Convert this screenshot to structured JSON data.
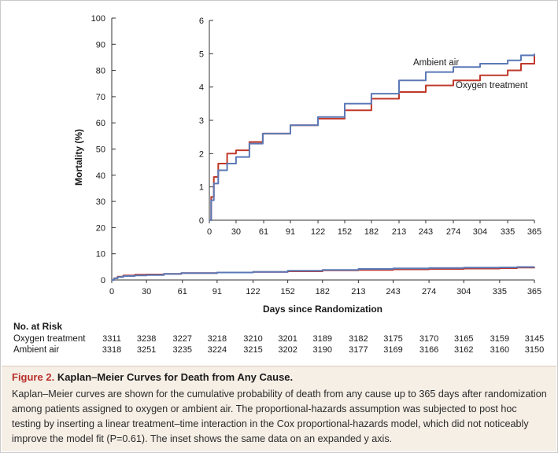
{
  "chart_data": [
    {
      "type": "line",
      "ylabel": "Mortality (%)",
      "xlabel": "Days since Randomization",
      "x_ticks": [
        0,
        30,
        61,
        91,
        122,
        152,
        182,
        213,
        243,
        274,
        304,
        335,
        365
      ],
      "xlim": [
        0,
        365
      ],
      "y_ticks": [
        0,
        10,
        20,
        30,
        40,
        50,
        60,
        70,
        80,
        90,
        100
      ],
      "ylim": [
        0,
        100
      ],
      "grid": false,
      "series": [
        {
          "name": "Oxygen treatment",
          "color": "#c0392b",
          "x": [
            0,
            2,
            5,
            10,
            20,
            30,
            45,
            60,
            91,
            122,
            152,
            182,
            213,
            243,
            274,
            304,
            335,
            350,
            365
          ],
          "y": [
            0,
            0.7,
            1.3,
            1.7,
            2.0,
            2.1,
            2.35,
            2.6,
            2.85,
            3.05,
            3.3,
            3.65,
            3.85,
            4.05,
            4.2,
            4.35,
            4.5,
            4.7,
            4.95
          ]
        },
        {
          "name": "Ambient air",
          "color": "#5b79b6",
          "x": [
            0,
            2,
            5,
            10,
            20,
            30,
            45,
            60,
            91,
            122,
            152,
            182,
            213,
            243,
            274,
            304,
            335,
            350,
            365
          ],
          "y": [
            0,
            0.6,
            1.1,
            1.5,
            1.7,
            1.9,
            2.3,
            2.6,
            2.85,
            3.1,
            3.5,
            3.8,
            4.2,
            4.45,
            4.6,
            4.7,
            4.8,
            4.95,
            5.0
          ]
        }
      ]
    },
    {
      "type": "line",
      "inset": true,
      "x_ticks": [
        0,
        30,
        61,
        91,
        122,
        152,
        182,
        213,
        243,
        274,
        304,
        335,
        365
      ],
      "xlim": [
        0,
        365
      ],
      "y_ticks": [
        0,
        1,
        2,
        3,
        4,
        5,
        6
      ],
      "ylim": [
        0,
        6
      ],
      "grid": false,
      "series": [
        {
          "name": "Oxygen treatment",
          "color": "#c0392b",
          "x": [
            0,
            2,
            5,
            10,
            20,
            30,
            45,
            60,
            91,
            122,
            152,
            182,
            213,
            243,
            274,
            304,
            335,
            350,
            365
          ],
          "y": [
            0,
            0.7,
            1.3,
            1.7,
            2.0,
            2.1,
            2.35,
            2.6,
            2.85,
            3.05,
            3.3,
            3.65,
            3.85,
            4.05,
            4.2,
            4.35,
            4.5,
            4.7,
            4.95
          ]
        },
        {
          "name": "Ambient air",
          "color": "#5b79b6",
          "x": [
            0,
            2,
            5,
            10,
            20,
            30,
            45,
            60,
            91,
            122,
            152,
            182,
            213,
            243,
            274,
            304,
            335,
            350,
            365
          ],
          "y": [
            0,
            0.6,
            1.1,
            1.5,
            1.7,
            1.9,
            2.3,
            2.6,
            2.85,
            3.1,
            3.5,
            3.8,
            4.2,
            4.45,
            4.6,
            4.7,
            4.8,
            4.95,
            5.0
          ]
        }
      ]
    }
  ],
  "risk_table": {
    "title": "No. at Risk",
    "rows": [
      {
        "label": "Oxygen treatment",
        "values": [
          "3311",
          "3238",
          "3227",
          "3218",
          "3210",
          "3201",
          "3189",
          "3182",
          "3175",
          "3170",
          "3165",
          "3159",
          "3145"
        ]
      },
      {
        "label": "Ambient air",
        "values": [
          "3318",
          "3251",
          "3235",
          "3224",
          "3215",
          "3202",
          "3190",
          "3177",
          "3169",
          "3166",
          "3162",
          "3160",
          "3150"
        ]
      }
    ]
  },
  "caption": {
    "figure_number": "Figure 2.",
    "title": "Kaplan–Meier Curves for Death from Any Cause.",
    "body": "Kaplan–Meier curves are shown for the cumulative probability of death from any cause up to 365 days after randomization among patients assigned to oxygen or ambient air. The proportional-hazards assumption was subjected to post hoc testing by inserting a linear treatment–time interaction in the Cox proportional-hazards model, which did not noticeably improve the model fit (P=0.61). The inset shows the same data on an expanded y axis."
  }
}
